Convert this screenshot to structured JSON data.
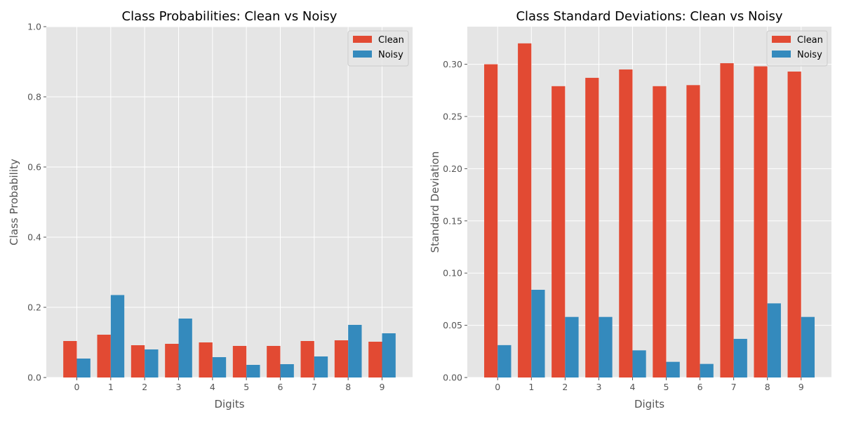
{
  "colors": {
    "clean": "#e24a33",
    "noisy": "#348abd",
    "plot_background": "#e5e5e5",
    "grid": "#ffffff"
  },
  "chart_data": [
    {
      "type": "bar",
      "title": "Class Probabilities: Clean vs Noisy",
      "xlabel": "Digits",
      "ylabel": "Class Probability",
      "categories": [
        "0",
        "1",
        "2",
        "3",
        "4",
        "5",
        "6",
        "7",
        "8",
        "9"
      ],
      "series": [
        {
          "name": "Clean",
          "values": [
            0.104,
            0.122,
            0.092,
            0.096,
            0.1,
            0.09,
            0.09,
            0.104,
            0.106,
            0.102
          ]
        },
        {
          "name": "Noisy",
          "values": [
            0.054,
            0.235,
            0.08,
            0.168,
            0.058,
            0.036,
            0.038,
            0.06,
            0.15,
            0.126
          ]
        }
      ],
      "ylim": [
        0,
        1
      ],
      "yticks": [
        "0.0",
        "0.2",
        "0.4",
        "0.6",
        "0.8",
        "1.0"
      ],
      "grid": true,
      "legend_position": "top-right"
    },
    {
      "type": "bar",
      "title": "Class Standard Deviations: Clean vs Noisy",
      "xlabel": "Digits",
      "ylabel": "Standard Deviation",
      "categories": [
        "0",
        "1",
        "2",
        "3",
        "4",
        "5",
        "6",
        "7",
        "8",
        "9"
      ],
      "series": [
        {
          "name": "Clean",
          "values": [
            0.3,
            0.32,
            0.279,
            0.287,
            0.295,
            0.279,
            0.28,
            0.301,
            0.298,
            0.293
          ]
        },
        {
          "name": "Noisy",
          "values": [
            0.031,
            0.084,
            0.058,
            0.058,
            0.026,
            0.015,
            0.013,
            0.037,
            0.071,
            0.058
          ]
        }
      ],
      "ylim": [
        0,
        0.336
      ],
      "yticks": [
        "0.00",
        "0.05",
        "0.10",
        "0.15",
        "0.20",
        "0.25",
        "0.30"
      ],
      "grid": true,
      "legend_position": "top-right"
    }
  ]
}
